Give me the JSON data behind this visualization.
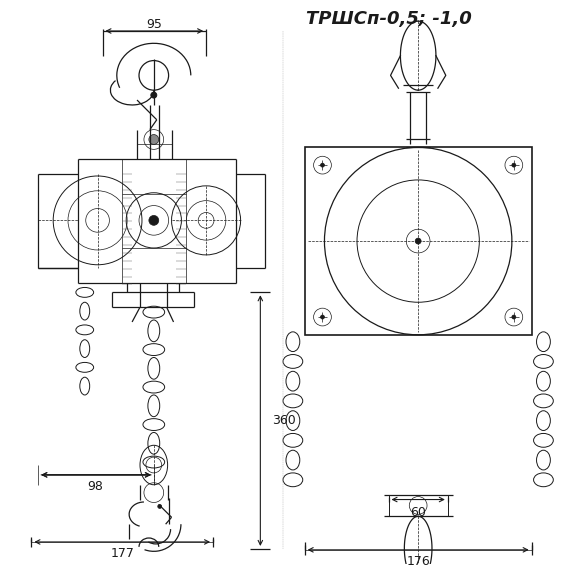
{
  "title": "ТРШСп-0,5; -1,0",
  "bg_color": "#ffffff",
  "line_color": "#1a1a1a",
  "dim_95": "95",
  "dim_360": "360",
  "dim_98": "98",
  "dim_177": "177",
  "dim_60": "60",
  "dim_176": "176",
  "fig_w": 5.7,
  "fig_h": 5.7,
  "dpi": 100
}
